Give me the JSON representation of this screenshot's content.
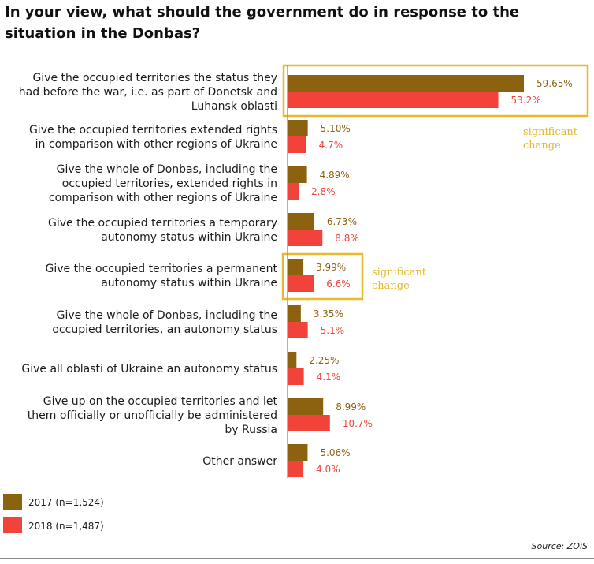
{
  "title": "In your view, what should the government do in response to the situation in the Donbas?",
  "source": "Source: ZOiS",
  "colors": {
    "s2017": "#8c6210",
    "s2018": "#f2433a",
    "highlight": "#e8b92a",
    "axis": "#999999"
  },
  "chart_data": {
    "type": "bar",
    "orientation": "horizontal",
    "categories": [
      [
        "Give the occupied territories the status they",
        "had before the war, i.e. as part of Donetsk and",
        "Luhansk oblasti"
      ],
      [
        "Give the occupied territories extended rights",
        "in comparison with other regions of Ukraine"
      ],
      [
        "Give the whole of Donbas, including the",
        "occupied territories, extended rights in",
        "comparison with other regions of Ukraine"
      ],
      [
        "Give the occupied territories a temporary",
        "autonomy status within Ukraine"
      ],
      [
        "Give the occupied territories a permanent",
        "autonomy status within Ukraine"
      ],
      [
        "Give the whole of Donbas, including the",
        "occupied territories, an autonomy status"
      ],
      [
        "Give all oblasti of Ukraine an autonomy status"
      ],
      [
        "Give up on the occupied territories and let",
        "them officially or unofficially be administered",
        "by Russia"
      ],
      [
        "Other answer"
      ]
    ],
    "series": [
      {
        "name": "2017 (n=1,524)",
        "values": [
          59.65,
          5.1,
          4.89,
          6.73,
          3.99,
          3.35,
          2.25,
          8.99,
          5.06
        ],
        "labels": [
          "59.65%",
          "5.10%",
          "4.89%",
          "6.73%",
          "3.99%",
          "3.35%",
          "2.25%",
          "8.99%",
          "5.06%"
        ]
      },
      {
        "name": "2018 (n=1,487)",
        "values": [
          53.2,
          4.7,
          2.8,
          8.8,
          6.6,
          5.1,
          4.1,
          10.7,
          4.0
        ],
        "labels": [
          "53.2%",
          "4.7%",
          "2.8%",
          "8.8%",
          "6.6%",
          "5.1%",
          "4.1%",
          "10.7%",
          "4.0%"
        ]
      }
    ],
    "highlights": [
      {
        "category_index": 0,
        "label": [
          "significant",
          "change"
        ]
      },
      {
        "category_index": 4,
        "label": [
          "significant",
          "change"
        ]
      }
    ],
    "legend_position": "bottom-left",
    "grid": false
  }
}
